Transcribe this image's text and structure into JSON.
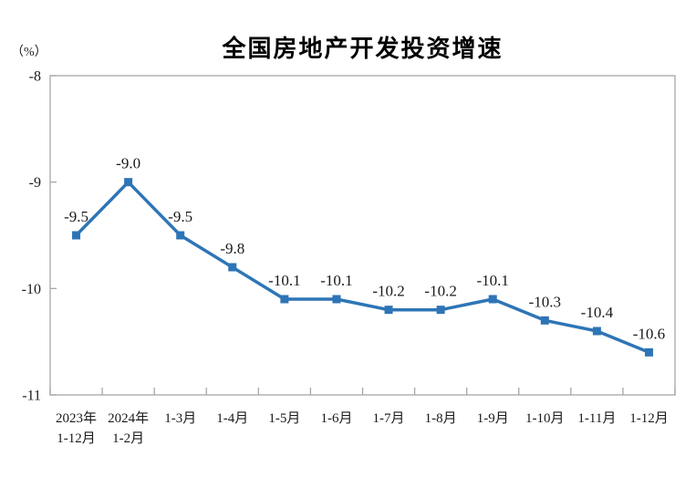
{
  "chart_data": {
    "type": "line",
    "title": "全国房地产开发投资增速",
    "unit_label": "（%）",
    "categories": [
      [
        "2023年",
        "1-12月"
      ],
      [
        "2024年",
        "1-2月"
      ],
      [
        "1-3月"
      ],
      [
        "1-4月"
      ],
      [
        "1-5月"
      ],
      [
        "1-6月"
      ],
      [
        "1-7月"
      ],
      [
        "1-8月"
      ],
      [
        "1-9月"
      ],
      [
        "1-10月"
      ],
      [
        "1-11月"
      ],
      [
        "1-12月"
      ]
    ],
    "values": [
      -9.5,
      -9.0,
      -9.5,
      -9.8,
      -10.1,
      -10.1,
      -10.2,
      -10.2,
      -10.1,
      -10.3,
      -10.4,
      -10.6
    ],
    "point_labels": [
      "-9.5",
      "-9.0",
      "-9.5",
      "-9.8",
      "-10.1",
      "-10.1",
      "-10.2",
      "-10.2",
      "-10.1",
      "-10.3",
      "-10.4",
      "-10.6"
    ],
    "ylim": [
      -11,
      -8
    ],
    "yticks": [
      -8,
      -9,
      -10,
      -11
    ],
    "ytick_labels": [
      "-8",
      "-9",
      "-10",
      "-11"
    ],
    "xlabel": "",
    "ylabel": "",
    "grid": false,
    "legend": "none",
    "marker": "square",
    "colors": {
      "line": "#2E75B6",
      "marker": "#2E75B6",
      "axis": "#A6A6A6",
      "text": "#1A1A1A",
      "title": "#000000"
    }
  }
}
